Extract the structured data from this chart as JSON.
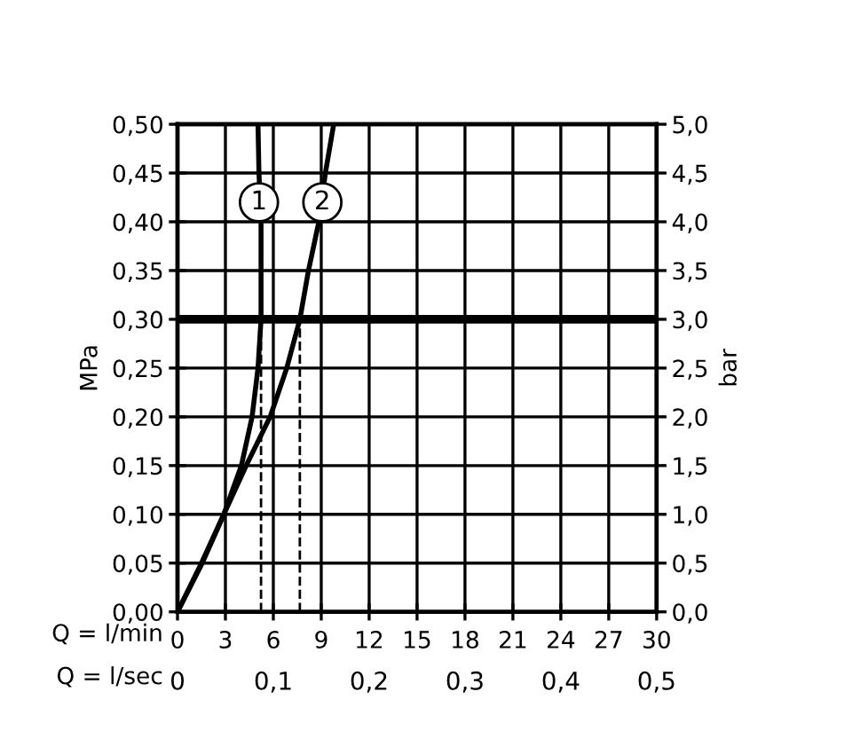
{
  "chart_data": {
    "type": "line",
    "xlabel": "Q = l/min",
    "x2label": "Q = l/sec",
    "ylabel": "MPa",
    "y2label": "bar",
    "series": [
      {
        "color": "#000000",
        "x": [
          0,
          1.55,
          2.9,
          4.0,
          4.67,
          5.04,
          5.23,
          5.23,
          5.1,
          5.04
        ],
        "values": [
          0,
          0.05,
          0.1,
          0.15,
          0.2,
          0.25,
          0.3,
          0.4,
          0.45,
          0.5
        ]
      },
      {
        "color": "#000000",
        "x": [
          0,
          1.5,
          2.9,
          4.3,
          5.8,
          6.84,
          7.66,
          8.2,
          8.85,
          9.26,
          9.78
        ],
        "values": [
          0,
          0.05,
          0.1,
          0.15,
          0.2,
          0.25,
          0.3,
          0.35,
          0.4,
          0.45,
          0.5
        ]
      }
    ],
    "annotations": [
      {
        "text": "1",
        "x": 5.1,
        "y": 0.42
      },
      {
        "text": "2",
        "x": 9.07,
        "y": 0.42
      }
    ],
    "ref_lines": [
      {
        "axis": "y",
        "value": 0.3,
        "color": "#000000",
        "line_style": "solid"
      },
      {
        "axis": "x",
        "value": 5.23,
        "color": "#000000",
        "line_style": "dashed"
      },
      {
        "axis": "x",
        "value": 7.66,
        "color": "#000000",
        "line_style": "dashed"
      }
    ],
    "xlim": [
      0,
      30
    ],
    "xticks": [
      0,
      3,
      6,
      9,
      12,
      15,
      18,
      21,
      24,
      27,
      30
    ],
    "x2lim": [
      0,
      0.5
    ],
    "x2ticks": [
      0,
      {
        "value": 0.1,
        "label": "0,1"
      },
      {
        "value": 0.2,
        "label": "0,2"
      },
      {
        "value": 0.3,
        "label": "0,3"
      },
      {
        "value": 0.4,
        "label": "0,4"
      },
      {
        "value": 0.5,
        "label": "0,5"
      }
    ],
    "ylim": [
      0,
      0.5
    ],
    "yticks": [
      {
        "value": 0,
        "label": "0,00"
      },
      {
        "value": 0.05,
        "label": "0,05"
      },
      {
        "value": 0.1,
        "label": "0,10"
      },
      {
        "value": 0.15,
        "label": "0,15"
      },
      {
        "value": 0.2,
        "label": "0,20"
      },
      {
        "value": 0.25,
        "label": "0,25"
      },
      {
        "value": 0.3,
        "label": "0,30"
      },
      {
        "value": 0.35,
        "label": "0,35"
      },
      {
        "value": 0.4,
        "label": "0,40"
      },
      {
        "value": 0.45,
        "label": "0,45"
      },
      {
        "value": 0.5,
        "label": "0,50"
      }
    ],
    "y2lim": [
      0,
      5
    ],
    "y2ticks": [
      {
        "value": 0,
        "label": "0,0"
      },
      {
        "value": 0.5,
        "label": "0,5"
      },
      {
        "value": 1,
        "label": "1,0"
      },
      {
        "value": 1.5,
        "label": "1,5"
      },
      {
        "value": 2,
        "label": "2,0"
      },
      {
        "value": 2.5,
        "label": "2,5"
      },
      {
        "value": 3,
        "label": "3,0"
      },
      {
        "value": 3.5,
        "label": "3,5"
      },
      {
        "value": 4,
        "label": "4,0"
      },
      {
        "value": 4.5,
        "label": "4,5"
      },
      {
        "value": 5,
        "label": "5,0"
      }
    ],
    "grid": true,
    "legend": false,
    "marker": "none",
    "line_style": "solid"
  }
}
